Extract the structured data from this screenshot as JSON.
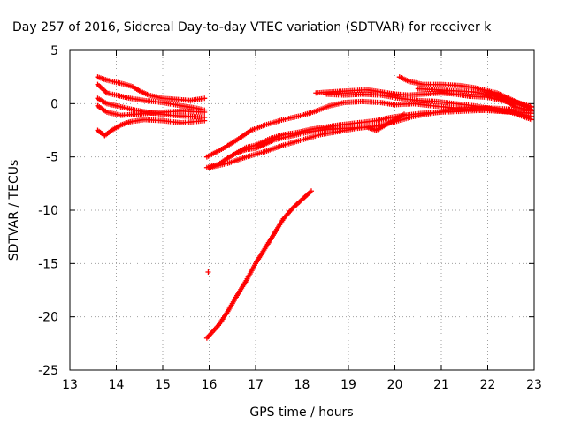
{
  "chart_data": {
    "type": "scatter",
    "title": "Day 257 of 2016, Sidereal Day-to-day VTEC variation (SDTVAR) for receiver k",
    "xlabel": "GPS time / hours",
    "ylabel": "SDTVAR / TECUs",
    "xlim": [
      13,
      23
    ],
    "ylim": [
      -25,
      5
    ],
    "xticks": [
      "13",
      "14",
      "15",
      "16",
      "17",
      "18",
      "19",
      "20",
      "21",
      "22",
      "23"
    ],
    "yticks": [
      "5",
      "0",
      "-5",
      "-10",
      "-15",
      "-20",
      "-25"
    ],
    "grid": true,
    "marker": "plus",
    "color": "#ff0000",
    "series": [
      {
        "points": [
          [
            13.6,
            2.5
          ],
          [
            13.8,
            2.2
          ],
          [
            14.0,
            2.0
          ],
          [
            14.2,
            1.8
          ],
          [
            14.35,
            1.6
          ],
          [
            14.5,
            1.2
          ],
          [
            14.7,
            0.8
          ],
          [
            15.0,
            0.5
          ],
          [
            15.3,
            0.4
          ],
          [
            15.6,
            0.3
          ],
          [
            15.9,
            0.5
          ]
        ]
      },
      {
        "points": [
          [
            13.6,
            1.8
          ],
          [
            13.8,
            1.0
          ],
          [
            14.0,
            0.8
          ],
          [
            14.3,
            0.5
          ],
          [
            14.6,
            0.3
          ],
          [
            15.0,
            0.1
          ],
          [
            15.4,
            -0.2
          ],
          [
            15.7,
            -0.4
          ],
          [
            15.9,
            -0.6
          ]
        ]
      },
      {
        "points": [
          [
            13.6,
            0.5
          ],
          [
            13.8,
            0.0
          ],
          [
            14.1,
            -0.3
          ],
          [
            14.4,
            -0.6
          ],
          [
            14.8,
            -0.9
          ],
          [
            15.2,
            -1.1
          ],
          [
            15.6,
            -1.2
          ],
          [
            15.9,
            -1.3
          ]
        ]
      },
      {
        "points": [
          [
            13.6,
            -0.2
          ],
          [
            13.8,
            -0.8
          ],
          [
            14.1,
            -1.1
          ],
          [
            14.4,
            -1.0
          ],
          [
            14.7,
            -0.9
          ],
          [
            15.0,
            -0.8
          ],
          [
            15.4,
            -0.7
          ],
          [
            15.9,
            -0.8
          ]
        ]
      },
      {
        "points": [
          [
            13.6,
            -2.5
          ],
          [
            13.75,
            -3.0
          ],
          [
            13.9,
            -2.5
          ],
          [
            14.1,
            -2.0
          ],
          [
            14.3,
            -1.7
          ],
          [
            14.6,
            -1.5
          ],
          [
            15.0,
            -1.6
          ],
          [
            15.4,
            -1.8
          ],
          [
            15.9,
            -1.6
          ]
        ]
      },
      {
        "points": [
          [
            15.95,
            -5.0
          ],
          [
            16.3,
            -4.2
          ],
          [
            16.6,
            -3.4
          ],
          [
            16.9,
            -2.5
          ],
          [
            17.2,
            -2.0
          ],
          [
            17.6,
            -1.5
          ],
          [
            18.0,
            -1.1
          ],
          [
            18.3,
            -0.7
          ],
          [
            18.6,
            -0.2
          ],
          [
            18.9,
            0.1
          ],
          [
            19.3,
            0.2
          ],
          [
            19.7,
            0.1
          ],
          [
            20.0,
            -0.1
          ],
          [
            20.4,
            0.0
          ],
          [
            20.8,
            -0.2
          ],
          [
            21.3,
            -0.4
          ],
          [
            21.8,
            -0.6
          ],
          [
            22.2,
            -0.7
          ],
          [
            22.6,
            -0.8
          ],
          [
            22.95,
            -0.9
          ]
        ]
      },
      {
        "points": [
          [
            15.95,
            -6.0
          ],
          [
            16.2,
            -5.7
          ],
          [
            16.4,
            -5.1
          ],
          [
            16.6,
            -4.6
          ],
          [
            16.8,
            -4.1
          ],
          [
            17.0,
            -3.9
          ],
          [
            17.3,
            -3.3
          ],
          [
            17.6,
            -2.9
          ],
          [
            17.9,
            -2.7
          ],
          [
            18.2,
            -2.4
          ],
          [
            18.5,
            -2.2
          ],
          [
            18.8,
            -2.0
          ],
          [
            19.2,
            -1.8
          ],
          [
            19.6,
            -1.6
          ],
          [
            19.9,
            -1.3
          ],
          [
            20.2,
            -1.1
          ],
          [
            20.6,
            -0.9
          ],
          [
            21.0,
            -0.8
          ],
          [
            21.5,
            -0.7
          ],
          [
            22.0,
            -0.6
          ],
          [
            22.5,
            -0.8
          ],
          [
            22.95,
            -1.2
          ]
        ]
      },
      {
        "points": [
          [
            16.0,
            -6.0
          ],
          [
            16.4,
            -5.6
          ],
          [
            16.8,
            -5.0
          ],
          [
            17.2,
            -4.5
          ],
          [
            17.6,
            -3.9
          ],
          [
            18.0,
            -3.4
          ],
          [
            18.4,
            -2.9
          ],
          [
            18.8,
            -2.6
          ],
          [
            19.2,
            -2.3
          ],
          [
            19.6,
            -2.1
          ],
          [
            20.0,
            -1.7
          ],
          [
            20.4,
            -1.2
          ],
          [
            20.8,
            -0.9
          ],
          [
            21.2,
            -0.6
          ],
          [
            21.6,
            -0.5
          ],
          [
            22.0,
            -0.4
          ],
          [
            22.4,
            -0.5
          ],
          [
            22.95,
            -0.7
          ]
        ]
      },
      {
        "points": [
          [
            16.6,
            -4.6
          ],
          [
            16.8,
            -4.3
          ],
          [
            17.0,
            -4.2
          ],
          [
            17.2,
            -3.8
          ],
          [
            17.4,
            -3.4
          ],
          [
            17.6,
            -3.2
          ],
          [
            17.8,
            -3.0
          ],
          [
            18.2,
            -2.6
          ],
          [
            18.6,
            -2.4
          ],
          [
            19.0,
            -2.3
          ],
          [
            19.4,
            -2.2
          ],
          [
            19.6,
            -2.5
          ],
          [
            19.8,
            -2.0
          ],
          [
            20.0,
            -1.5
          ],
          [
            20.2,
            -1.0
          ]
        ]
      },
      {
        "points": [
          [
            18.3,
            1.0
          ],
          [
            18.6,
            1.1
          ],
          [
            19.0,
            1.2
          ],
          [
            19.4,
            1.3
          ],
          [
            19.7,
            1.1
          ],
          [
            20.0,
            0.9
          ],
          [
            20.3,
            0.8
          ],
          [
            20.6,
            0.9
          ],
          [
            21.0,
            1.0
          ],
          [
            21.3,
            0.9
          ],
          [
            21.6,
            0.7
          ],
          [
            22.0,
            0.6
          ],
          [
            22.3,
            0.3
          ],
          [
            22.6,
            0.0
          ],
          [
            22.95,
            -0.3
          ]
        ]
      },
      {
        "points": [
          [
            18.5,
            0.9
          ],
          [
            18.9,
            0.8
          ],
          [
            19.3,
            0.9
          ],
          [
            19.7,
            0.8
          ],
          [
            20.1,
            0.5
          ],
          [
            20.5,
            0.3
          ],
          [
            20.9,
            0.2
          ],
          [
            21.3,
            0.0
          ],
          [
            21.7,
            -0.2
          ],
          [
            22.1,
            -0.5
          ],
          [
            22.5,
            -0.8
          ],
          [
            22.95,
            -1.5
          ]
        ]
      },
      {
        "points": [
          [
            20.1,
            2.5
          ],
          [
            20.3,
            2.1
          ],
          [
            20.6,
            1.8
          ],
          [
            21.0,
            1.8
          ],
          [
            21.4,
            1.7
          ],
          [
            21.7,
            1.5
          ],
          [
            22.0,
            1.2
          ],
          [
            22.2,
            0.7
          ],
          [
            22.4,
            0.2
          ],
          [
            22.6,
            -0.3
          ],
          [
            22.95,
            -0.7
          ]
        ]
      },
      {
        "points": [
          [
            20.5,
            1.4
          ],
          [
            20.9,
            1.3
          ],
          [
            21.3,
            1.2
          ],
          [
            21.7,
            1.1
          ],
          [
            22.1,
            0.8
          ],
          [
            22.5,
            0.3
          ],
          [
            22.95,
            -0.3
          ]
        ]
      },
      {
        "points": [
          [
            22.0,
            1.2
          ],
          [
            22.2,
            1.0
          ],
          [
            22.4,
            0.6
          ],
          [
            22.6,
            0.2
          ],
          [
            22.8,
            -0.2
          ],
          [
            22.95,
            -0.6
          ]
        ]
      },
      {
        "points": [
          [
            15.95,
            -22.0
          ],
          [
            16.2,
            -20.8
          ],
          [
            16.4,
            -19.5
          ],
          [
            16.6,
            -18.0
          ],
          [
            16.8,
            -16.6
          ],
          [
            17.0,
            -15.0
          ],
          [
            17.2,
            -13.6
          ],
          [
            17.4,
            -12.2
          ],
          [
            17.6,
            -10.8
          ],
          [
            17.8,
            -9.8
          ],
          [
            18.0,
            -9.0
          ],
          [
            18.2,
            -8.2
          ]
        ]
      },
      {
        "points": [
          [
            15.98,
            -15.8
          ]
        ]
      }
    ]
  }
}
